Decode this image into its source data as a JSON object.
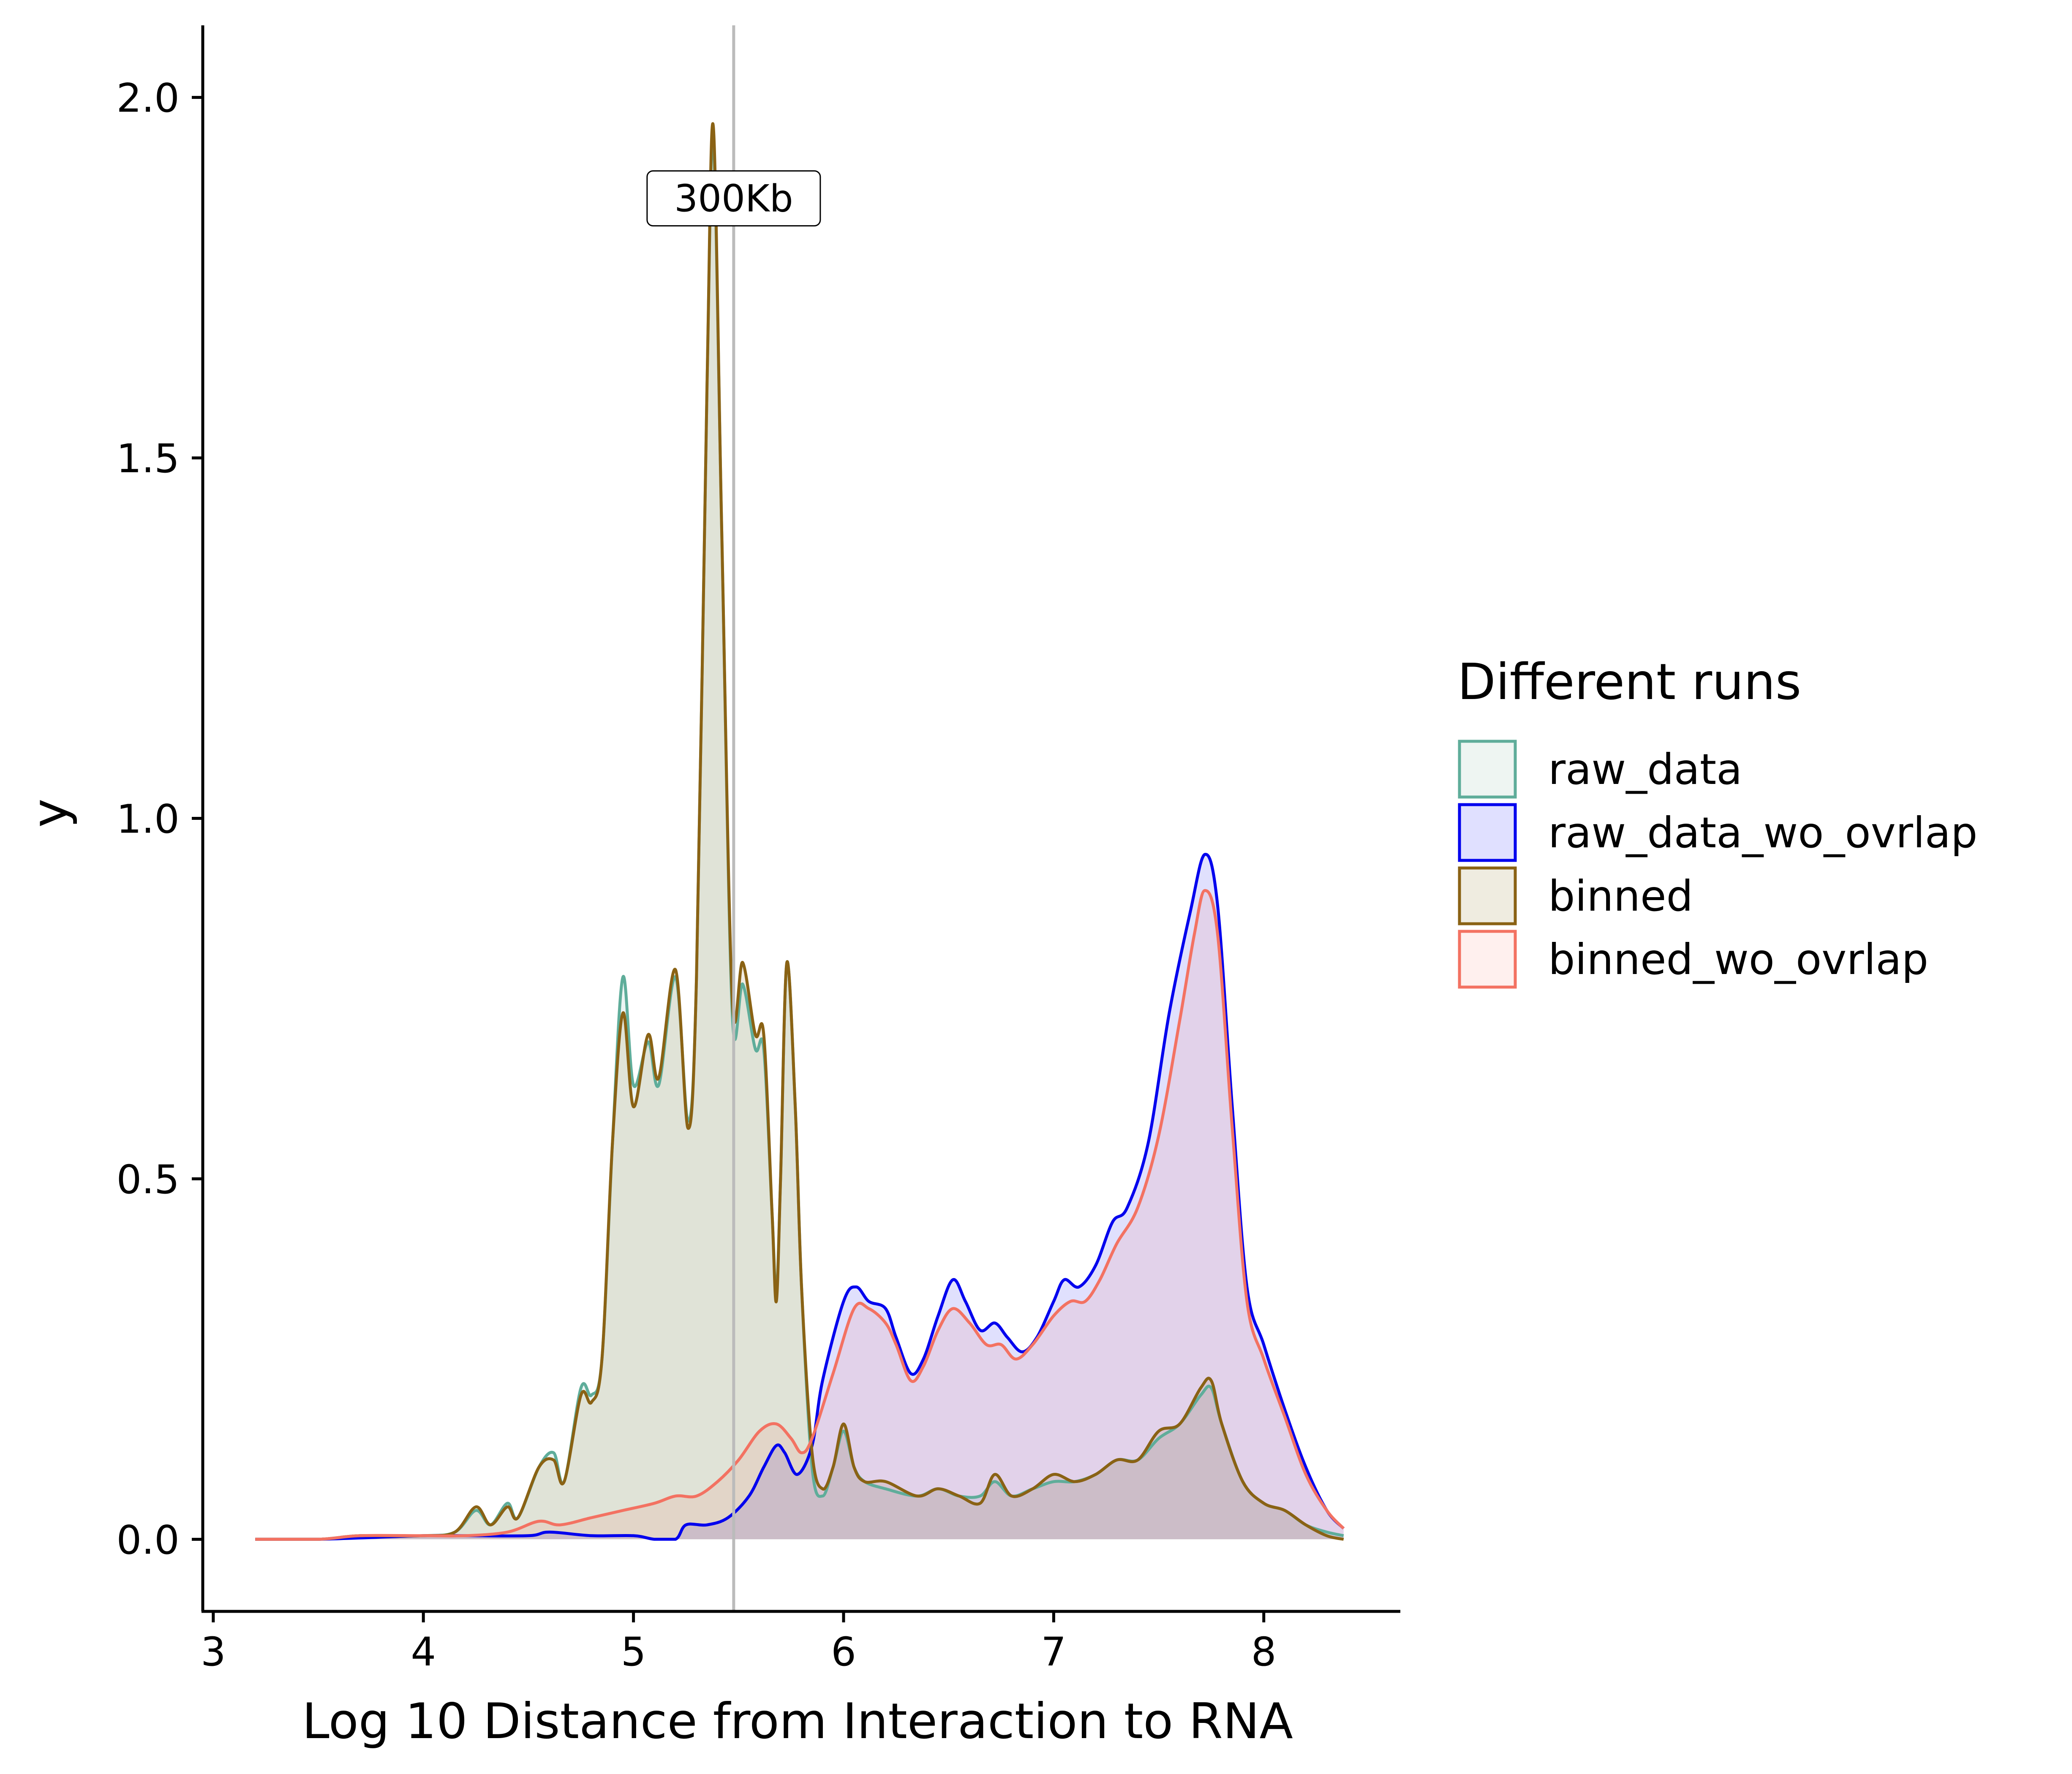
{
  "chart_data": {
    "type": "area",
    "xlabel": "Log 10 Distance from Interaction to RNA",
    "ylabel": "y",
    "xlim": [
      2.95,
      8.65
    ],
    "ylim": [
      -0.1,
      2.1
    ],
    "x_ticks": [
      3,
      4,
      5,
      6,
      7,
      8
    ],
    "x_tick_labels": [
      "3",
      "4",
      "5",
      "6",
      "7",
      "8"
    ],
    "y_ticks": [
      0.0,
      0.5,
      1.0,
      1.5,
      2.0
    ],
    "y_tick_labels": [
      "0.0",
      "0.5",
      "1.0",
      "1.5",
      "2.0"
    ],
    "grid": false,
    "legend": {
      "title": "Different runs",
      "placement": "right"
    },
    "vline": {
      "x": 5.477,
      "label": "300Kb",
      "label_y": 1.86,
      "color": "#bbbbbb"
    },
    "series": [
      {
        "name": "raw_data",
        "color": "#5fad9a",
        "fill": "#eef5f2",
        "points": [
          [
            3.2,
            0.0
          ],
          [
            3.5,
            0.0
          ],
          [
            3.7,
            0.005
          ],
          [
            4.0,
            0.005
          ],
          [
            4.15,
            0.01
          ],
          [
            4.25,
            0.04
          ],
          [
            4.32,
            0.02
          ],
          [
            4.4,
            0.05
          ],
          [
            4.45,
            0.03
          ],
          [
            4.55,
            0.1
          ],
          [
            4.62,
            0.12
          ],
          [
            4.67,
            0.08
          ],
          [
            4.75,
            0.21
          ],
          [
            4.8,
            0.2
          ],
          [
            4.85,
            0.25
          ],
          [
            4.9,
            0.55
          ],
          [
            4.95,
            0.78
          ],
          [
            5.0,
            0.63
          ],
          [
            5.07,
            0.69
          ],
          [
            5.12,
            0.63
          ],
          [
            5.2,
            0.78
          ],
          [
            5.26,
            0.58
          ],
          [
            5.3,
            0.78
          ],
          [
            5.35,
            1.6
          ],
          [
            5.38,
            1.94
          ],
          [
            5.42,
            1.4
          ],
          [
            5.47,
            0.73
          ],
          [
            5.52,
            0.77
          ],
          [
            5.58,
            0.68
          ],
          [
            5.62,
            0.68
          ],
          [
            5.66,
            0.45
          ],
          [
            5.68,
            0.34
          ],
          [
            5.7,
            0.5
          ],
          [
            5.73,
            0.8
          ],
          [
            5.77,
            0.6
          ],
          [
            5.8,
            0.35
          ],
          [
            5.85,
            0.1
          ],
          [
            5.9,
            0.06
          ],
          [
            5.95,
            0.1
          ],
          [
            6.0,
            0.15
          ],
          [
            6.05,
            0.1
          ],
          [
            6.1,
            0.08
          ],
          [
            6.2,
            0.07
          ],
          [
            6.35,
            0.06
          ],
          [
            6.45,
            0.07
          ],
          [
            6.55,
            0.06
          ],
          [
            6.65,
            0.06
          ],
          [
            6.72,
            0.08
          ],
          [
            6.8,
            0.06
          ],
          [
            6.9,
            0.07
          ],
          [
            7.0,
            0.08
          ],
          [
            7.1,
            0.08
          ],
          [
            7.2,
            0.09
          ],
          [
            7.3,
            0.11
          ],
          [
            7.4,
            0.11
          ],
          [
            7.5,
            0.14
          ],
          [
            7.6,
            0.16
          ],
          [
            7.7,
            0.2
          ],
          [
            7.75,
            0.21
          ],
          [
            7.8,
            0.16
          ],
          [
            7.9,
            0.08
          ],
          [
            8.0,
            0.05
          ],
          [
            8.1,
            0.04
          ],
          [
            8.2,
            0.02
          ],
          [
            8.3,
            0.01
          ],
          [
            8.38,
            0.005
          ]
        ]
      },
      {
        "name": "raw_data_wo_ovrlap",
        "color": "#0000ee",
        "fill": "#e0e0ff",
        "points": [
          [
            3.2,
            0.0
          ],
          [
            3.5,
            0.0
          ],
          [
            4.0,
            0.005
          ],
          [
            4.2,
            0.005
          ],
          [
            4.5,
            0.005
          ],
          [
            4.6,
            0.01
          ],
          [
            4.8,
            0.005
          ],
          [
            5.0,
            0.005
          ],
          [
            5.1,
            0.0
          ],
          [
            5.2,
            0.0
          ],
          [
            5.25,
            0.02
          ],
          [
            5.35,
            0.02
          ],
          [
            5.45,
            0.03
          ],
          [
            5.55,
            0.06
          ],
          [
            5.62,
            0.1
          ],
          [
            5.68,
            0.13
          ],
          [
            5.72,
            0.12
          ],
          [
            5.78,
            0.09
          ],
          [
            5.85,
            0.13
          ],
          [
            5.9,
            0.22
          ],
          [
            6.0,
            0.33
          ],
          [
            6.06,
            0.35
          ],
          [
            6.12,
            0.33
          ],
          [
            6.2,
            0.32
          ],
          [
            6.25,
            0.28
          ],
          [
            6.32,
            0.23
          ],
          [
            6.38,
            0.25
          ],
          [
            6.45,
            0.31
          ],
          [
            6.52,
            0.36
          ],
          [
            6.58,
            0.33
          ],
          [
            6.65,
            0.29
          ],
          [
            6.72,
            0.3
          ],
          [
            6.78,
            0.28
          ],
          [
            6.85,
            0.26
          ],
          [
            6.92,
            0.28
          ],
          [
            7.0,
            0.33
          ],
          [
            7.05,
            0.36
          ],
          [
            7.12,
            0.35
          ],
          [
            7.2,
            0.38
          ],
          [
            7.28,
            0.44
          ],
          [
            7.35,
            0.46
          ],
          [
            7.45,
            0.55
          ],
          [
            7.55,
            0.73
          ],
          [
            7.65,
            0.87
          ],
          [
            7.72,
            0.95
          ],
          [
            7.78,
            0.88
          ],
          [
            7.85,
            0.6
          ],
          [
            7.92,
            0.35
          ],
          [
            8.0,
            0.27
          ],
          [
            8.1,
            0.18
          ],
          [
            8.2,
            0.1
          ],
          [
            8.3,
            0.04
          ],
          [
            8.38,
            0.015
          ]
        ]
      },
      {
        "name": "binned",
        "color": "#8a6214",
        "fill": "#efece0",
        "points": [
          [
            3.2,
            0.0
          ],
          [
            3.5,
            0.0
          ],
          [
            3.7,
            0.005
          ],
          [
            4.0,
            0.005
          ],
          [
            4.15,
            0.01
          ],
          [
            4.25,
            0.045
          ],
          [
            4.32,
            0.02
          ],
          [
            4.4,
            0.045
          ],
          [
            4.45,
            0.03
          ],
          [
            4.55,
            0.1
          ],
          [
            4.62,
            0.11
          ],
          [
            4.67,
            0.08
          ],
          [
            4.75,
            0.2
          ],
          [
            4.8,
            0.19
          ],
          [
            4.85,
            0.25
          ],
          [
            4.9,
            0.55
          ],
          [
            4.95,
            0.73
          ],
          [
            5.0,
            0.6
          ],
          [
            5.07,
            0.7
          ],
          [
            5.12,
            0.64
          ],
          [
            5.2,
            0.79
          ],
          [
            5.26,
            0.57
          ],
          [
            5.3,
            0.78
          ],
          [
            5.35,
            1.6
          ],
          [
            5.38,
            1.96
          ],
          [
            5.42,
            1.4
          ],
          [
            5.47,
            0.75
          ],
          [
            5.52,
            0.8
          ],
          [
            5.58,
            0.7
          ],
          [
            5.62,
            0.7
          ],
          [
            5.66,
            0.45
          ],
          [
            5.68,
            0.33
          ],
          [
            5.7,
            0.5
          ],
          [
            5.73,
            0.8
          ],
          [
            5.77,
            0.6
          ],
          [
            5.8,
            0.35
          ],
          [
            5.85,
            0.12
          ],
          [
            5.9,
            0.07
          ],
          [
            5.95,
            0.1
          ],
          [
            6.0,
            0.16
          ],
          [
            6.05,
            0.1
          ],
          [
            6.1,
            0.08
          ],
          [
            6.2,
            0.08
          ],
          [
            6.35,
            0.06
          ],
          [
            6.45,
            0.07
          ],
          [
            6.55,
            0.06
          ],
          [
            6.65,
            0.05
          ],
          [
            6.72,
            0.09
          ],
          [
            6.8,
            0.06
          ],
          [
            6.9,
            0.07
          ],
          [
            7.0,
            0.09
          ],
          [
            7.1,
            0.08
          ],
          [
            7.2,
            0.09
          ],
          [
            7.3,
            0.11
          ],
          [
            7.4,
            0.11
          ],
          [
            7.5,
            0.15
          ],
          [
            7.6,
            0.16
          ],
          [
            7.7,
            0.21
          ],
          [
            7.75,
            0.22
          ],
          [
            7.8,
            0.16
          ],
          [
            7.9,
            0.08
          ],
          [
            8.0,
            0.05
          ],
          [
            8.1,
            0.04
          ],
          [
            8.2,
            0.02
          ],
          [
            8.3,
            0.005
          ],
          [
            8.38,
            0.0
          ]
        ]
      },
      {
        "name": "binned_wo_ovrlap",
        "color": "#f37262",
        "fill": "#fff0ee",
        "points": [
          [
            3.2,
            0.0
          ],
          [
            3.5,
            0.0
          ],
          [
            3.7,
            0.005
          ],
          [
            4.0,
            0.005
          ],
          [
            4.2,
            0.005
          ],
          [
            4.4,
            0.01
          ],
          [
            4.55,
            0.025
          ],
          [
            4.65,
            0.02
          ],
          [
            4.8,
            0.03
          ],
          [
            4.95,
            0.04
          ],
          [
            5.1,
            0.05
          ],
          [
            5.2,
            0.06
          ],
          [
            5.3,
            0.06
          ],
          [
            5.4,
            0.08
          ],
          [
            5.5,
            0.11
          ],
          [
            5.6,
            0.15
          ],
          [
            5.68,
            0.16
          ],
          [
            5.75,
            0.14
          ],
          [
            5.8,
            0.12
          ],
          [
            5.85,
            0.14
          ],
          [
            5.95,
            0.23
          ],
          [
            6.05,
            0.32
          ],
          [
            6.12,
            0.32
          ],
          [
            6.2,
            0.3
          ],
          [
            6.25,
            0.27
          ],
          [
            6.32,
            0.22
          ],
          [
            6.38,
            0.24
          ],
          [
            6.45,
            0.29
          ],
          [
            6.52,
            0.32
          ],
          [
            6.6,
            0.3
          ],
          [
            6.68,
            0.27
          ],
          [
            6.75,
            0.27
          ],
          [
            6.82,
            0.25
          ],
          [
            6.9,
            0.27
          ],
          [
            7.0,
            0.31
          ],
          [
            7.08,
            0.33
          ],
          [
            7.15,
            0.33
          ],
          [
            7.22,
            0.36
          ],
          [
            7.3,
            0.41
          ],
          [
            7.4,
            0.46
          ],
          [
            7.5,
            0.56
          ],
          [
            7.6,
            0.72
          ],
          [
            7.67,
            0.84
          ],
          [
            7.72,
            0.9
          ],
          [
            7.78,
            0.84
          ],
          [
            7.85,
            0.57
          ],
          [
            7.92,
            0.33
          ],
          [
            8.0,
            0.25
          ],
          [
            8.1,
            0.17
          ],
          [
            8.2,
            0.09
          ],
          [
            8.3,
            0.04
          ],
          [
            8.38,
            0.015
          ]
        ]
      }
    ]
  }
}
